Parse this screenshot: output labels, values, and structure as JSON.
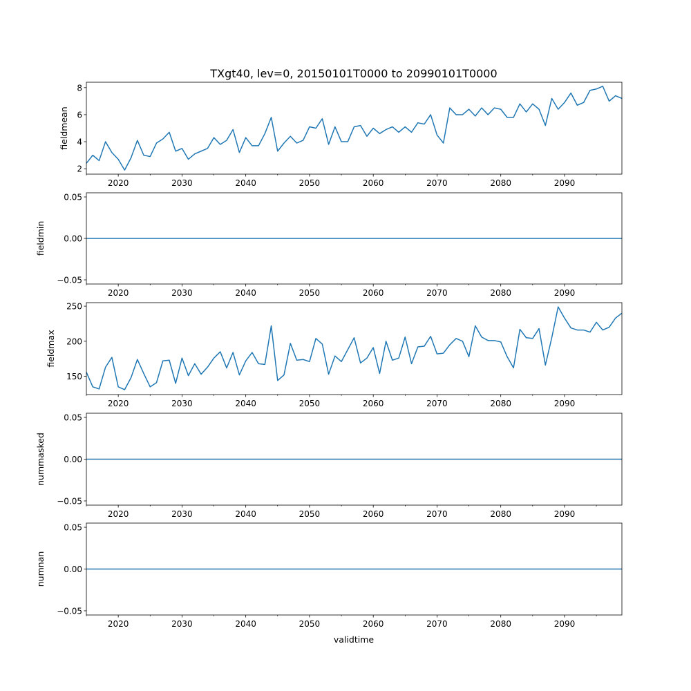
{
  "title": "TXgt40, lev=0, 20150101T0000 to 20990101T0000",
  "xlabel": "validtime",
  "line_color": "#1f77b4",
  "chart_data": [
    {
      "type": "line",
      "name": "fieldmean",
      "ylabel": "fieldmean",
      "xlim": [
        2015,
        2099
      ],
      "ylim": [
        1.6,
        8.4
      ],
      "xticks": [
        2020,
        2030,
        2040,
        2050,
        2060,
        2070,
        2080,
        2090
      ],
      "xtick_labels": [
        "2020",
        "2030",
        "2040",
        "2050",
        "2060",
        "2070",
        "2080",
        "2090"
      ],
      "yticks": [
        2,
        4,
        6,
        8
      ],
      "ytick_labels": [
        "2",
        "4",
        "6",
        "8"
      ],
      "x_start": 2015,
      "values": [
        2.4,
        3.0,
        2.6,
        4.0,
        3.2,
        2.7,
        1.9,
        2.8,
        4.1,
        3.0,
        2.9,
        3.9,
        4.2,
        4.7,
        3.3,
        3.5,
        2.7,
        3.1,
        3.3,
        3.5,
        4.3,
        3.8,
        4.1,
        4.9,
        3.2,
        4.3,
        3.7,
        3.7,
        4.6,
        5.8,
        3.3,
        3.9,
        4.4,
        3.9,
        4.1,
        5.1,
        5.0,
        5.7,
        3.8,
        5.1,
        4.0,
        4.0,
        5.1,
        5.2,
        4.4,
        5.0,
        4.6,
        4.9,
        5.1,
        4.7,
        5.1,
        4.7,
        5.4,
        5.3,
        6.0,
        4.5,
        3.9,
        6.5,
        6.0,
        6.0,
        6.4,
        5.9,
        6.5,
        6.0,
        6.5,
        6.4,
        5.8,
        5.8,
        6.8,
        6.2,
        6.8,
        6.4,
        5.2,
        7.2,
        6.4,
        6.9,
        7.6,
        6.7,
        6.9,
        7.8,
        7.9,
        8.1,
        7.0,
        7.4,
        7.2
      ]
    },
    {
      "type": "line",
      "name": "fieldmin",
      "ylabel": "fieldmin",
      "xlim": [
        2015,
        2099
      ],
      "ylim": [
        -0.055,
        0.055
      ],
      "xticks": [
        2020,
        2030,
        2040,
        2050,
        2060,
        2070,
        2080,
        2090
      ],
      "xtick_labels": [
        "2020",
        "2030",
        "2040",
        "2050",
        "2060",
        "2070",
        "2080",
        "2090"
      ],
      "yticks": [
        -0.05,
        0.0,
        0.05
      ],
      "ytick_labels": [
        "−0.05",
        "0.00",
        "0.05"
      ],
      "x_start": 2015,
      "constant": 0
    },
    {
      "type": "line",
      "name": "fieldmax",
      "ylabel": "fieldmax",
      "xlim": [
        2015,
        2099
      ],
      "ylim": [
        124,
        255
      ],
      "xticks": [
        2020,
        2030,
        2040,
        2050,
        2060,
        2070,
        2080,
        2090
      ],
      "xtick_labels": [
        "2020",
        "2030",
        "2040",
        "2050",
        "2060",
        "2070",
        "2080",
        "2090"
      ],
      "yticks": [
        150,
        200,
        250
      ],
      "ytick_labels": [
        "150",
        "200",
        "250"
      ],
      "x_start": 2015,
      "values": [
        156,
        135,
        132,
        163,
        177,
        135,
        131,
        148,
        174,
        154,
        135,
        141,
        172,
        173,
        140,
        176,
        151,
        168,
        153,
        163,
        176,
        185,
        162,
        184,
        152,
        172,
        184,
        168,
        167,
        222,
        144,
        152,
        197,
        173,
        174,
        171,
        204,
        196,
        153,
        179,
        171,
        188,
        205,
        169,
        176,
        191,
        154,
        200,
        173,
        176,
        206,
        168,
        192,
        193,
        207,
        182,
        183,
        195,
        204,
        200,
        178,
        222,
        206,
        201,
        201,
        199,
        178,
        162,
        217,
        205,
        204,
        218,
        166,
        205,
        249,
        233,
        219,
        216,
        216,
        213,
        227,
        216,
        220,
        233,
        240
      ]
    },
    {
      "type": "line",
      "name": "nummasked",
      "ylabel": "nummasked",
      "xlim": [
        2015,
        2099
      ],
      "ylim": [
        -0.055,
        0.055
      ],
      "xticks": [
        2020,
        2030,
        2040,
        2050,
        2060,
        2070,
        2080,
        2090
      ],
      "xtick_labels": [
        "2020",
        "2030",
        "2040",
        "2050",
        "2060",
        "2070",
        "2080",
        "2090"
      ],
      "yticks": [
        -0.05,
        0.0,
        0.05
      ],
      "ytick_labels": [
        "−0.05",
        "0.00",
        "0.05"
      ],
      "x_start": 2015,
      "constant": 0
    },
    {
      "type": "line",
      "name": "numnan",
      "ylabel": "numnan",
      "xlim": [
        2015,
        2099
      ],
      "ylim": [
        -0.055,
        0.055
      ],
      "xticks": [
        2020,
        2030,
        2040,
        2050,
        2060,
        2070,
        2080,
        2090
      ],
      "xtick_labels": [
        "2020",
        "2030",
        "2040",
        "2050",
        "2060",
        "2070",
        "2080",
        "2090"
      ],
      "yticks": [
        -0.05,
        0.0,
        0.05
      ],
      "ytick_labels": [
        "−0.05",
        "0.00",
        "0.05"
      ],
      "x_start": 2015,
      "constant": 0
    }
  ]
}
